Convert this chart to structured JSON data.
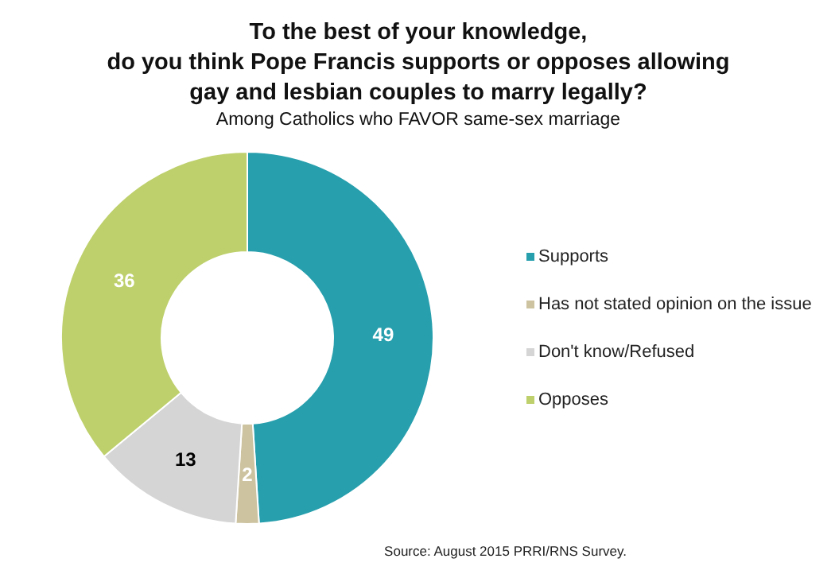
{
  "chart_data": {
    "type": "donut",
    "title": "To the best of your knowledge,\ndo you think Pope Francis supports or opposes allowing\ngay and lesbian couples to marry legally?",
    "subtitle": "Among Catholics who FAVOR same-sex marriage",
    "categories": [
      "Supports",
      "Has not stated opinion on the issue",
      "Don't know/Refused",
      "Opposes"
    ],
    "values": [
      49,
      2,
      13,
      36
    ],
    "colors": [
      "#279fad",
      "#cdc3a0",
      "#d5d5d5",
      "#bdd06b"
    ],
    "data_labels": true,
    "legend": "right",
    "annotations": [
      "Source: August 2015 PRRI/RNS Survey."
    ]
  }
}
